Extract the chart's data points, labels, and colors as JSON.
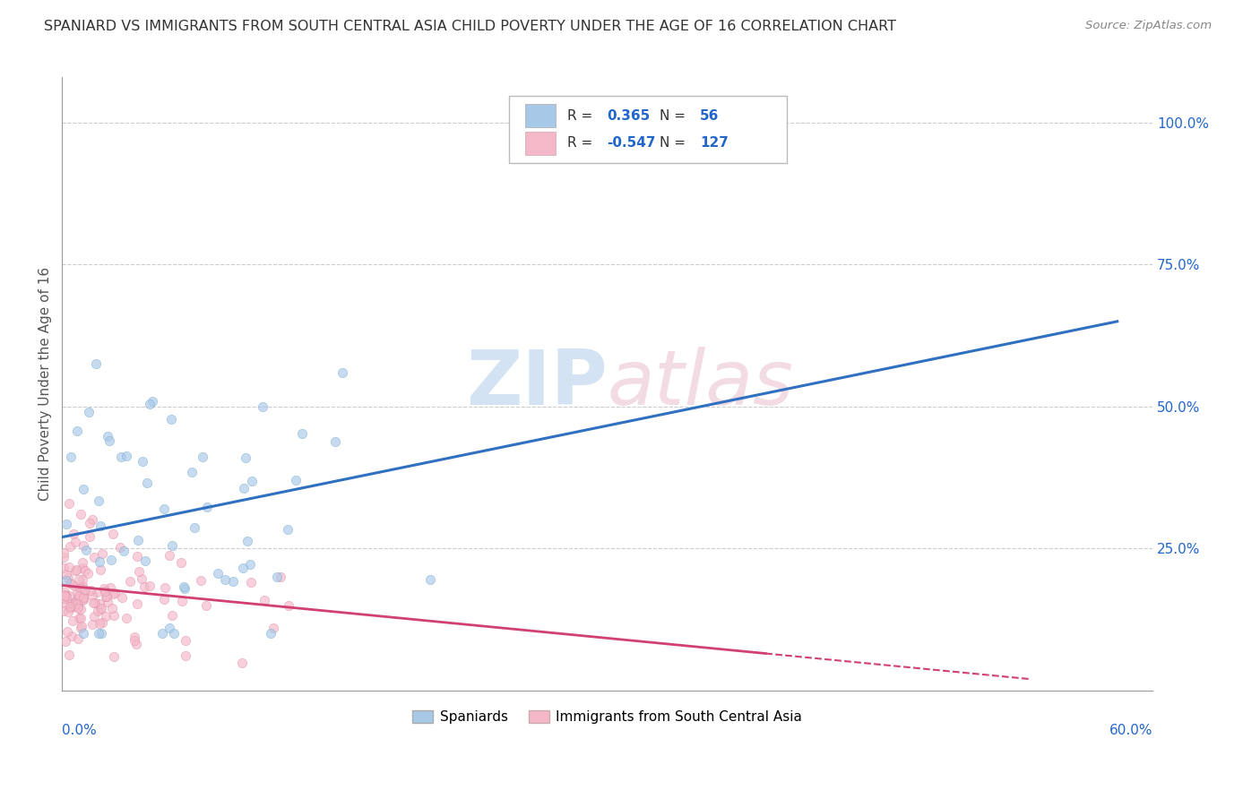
{
  "title": "SPANIARD VS IMMIGRANTS FROM SOUTH CENTRAL ASIA CHILD POVERTY UNDER THE AGE OF 16 CORRELATION CHART",
  "source": "Source: ZipAtlas.com",
  "ylabel": "Child Poverty Under the Age of 16",
  "blue_R": 0.365,
  "blue_N": 56,
  "pink_R": -0.547,
  "pink_N": 127,
  "blue_color": "#a8c8e8",
  "pink_color": "#f4b8c8",
  "blue_edge_color": "#7aaed0",
  "pink_edge_color": "#e090a8",
  "blue_line_color": "#3070c0",
  "pink_line_color": "#d04070",
  "watermark_color": "#c8ddf0",
  "xlim": [
    0.0,
    0.62
  ],
  "ylim": [
    0.0,
    1.08
  ],
  "blue_line_x0": 0.0,
  "blue_line_y0": 0.27,
  "blue_line_x1": 0.6,
  "blue_line_y1": 0.65,
  "pink_line_x0": 0.0,
  "pink_line_y0": 0.185,
  "pink_line_x1": 0.55,
  "pink_line_y1": 0.02,
  "grid_color": "#cccccc",
  "grid_yticks": [
    0.25,
    0.5,
    0.75,
    1.0
  ],
  "right_yticklabels": [
    "25.0%",
    "50.0%",
    "75.0%",
    "100.0%"
  ],
  "legend_R_color": "#2266cc",
  "legend_N_color": "#2266cc",
  "legend_text_color": "#333333"
}
